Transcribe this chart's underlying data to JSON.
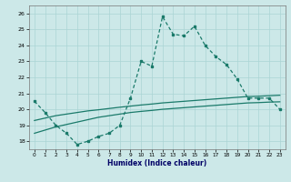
{
  "xlabel": "Humidex (Indice chaleur)",
  "x": [
    0,
    1,
    2,
    3,
    4,
    5,
    6,
    7,
    8,
    9,
    10,
    11,
    12,
    13,
    14,
    15,
    16,
    17,
    18,
    19,
    20,
    21,
    22,
    23
  ],
  "line1": [
    20.5,
    19.8,
    19.0,
    18.5,
    17.8,
    18.0,
    18.3,
    18.5,
    19.0,
    20.7,
    23.0,
    22.7,
    25.8,
    24.7,
    24.6,
    25.2,
    24.0,
    23.3,
    22.8,
    21.9,
    20.7,
    20.7,
    20.7,
    20.0
  ],
  "line2_smooth": [
    18.5,
    18.7,
    18.9,
    19.05,
    19.2,
    19.35,
    19.5,
    19.6,
    19.7,
    19.8,
    19.87,
    19.93,
    20.0,
    20.05,
    20.1,
    20.15,
    20.2,
    20.25,
    20.3,
    20.35,
    20.4,
    20.42,
    20.45,
    20.47
  ],
  "line3_smooth": [
    19.3,
    19.45,
    19.6,
    19.7,
    19.8,
    19.9,
    19.97,
    20.05,
    20.13,
    20.2,
    20.27,
    20.33,
    20.4,
    20.45,
    20.5,
    20.55,
    20.6,
    20.65,
    20.7,
    20.75,
    20.8,
    20.82,
    20.85,
    20.88
  ],
  "line_color": "#1a7a6a",
  "bg_color": "#cce8e8",
  "grid_color": "#aad4d4",
  "ylim": [
    17.5,
    26.5
  ],
  "xlim": [
    -0.5,
    23.5
  ],
  "yticks": [
    18,
    19,
    20,
    21,
    22,
    23,
    24,
    25,
    26
  ],
  "xticks": [
    0,
    1,
    2,
    3,
    4,
    5,
    6,
    7,
    8,
    9,
    10,
    11,
    12,
    13,
    14,
    15,
    16,
    17,
    18,
    19,
    20,
    21,
    22,
    23
  ]
}
